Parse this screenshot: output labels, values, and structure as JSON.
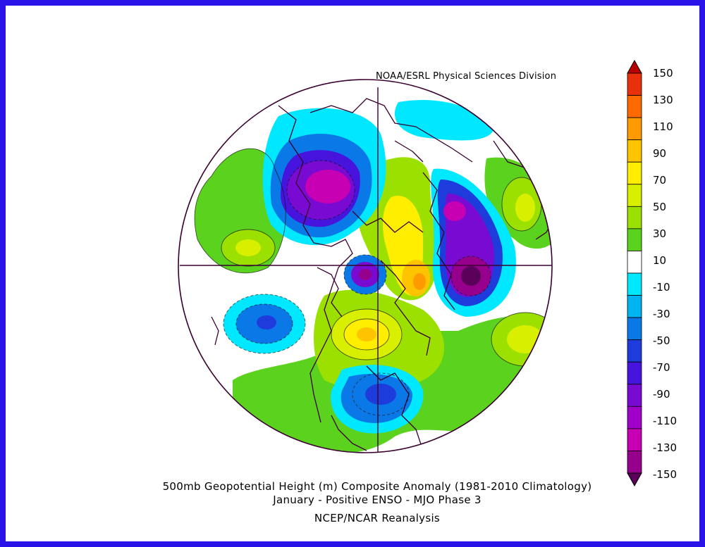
{
  "header": {
    "credit": "NOAA/ESRL Physical Sciences Division"
  },
  "colorbar": {
    "labels": [
      "150",
      "130",
      "110",
      "90",
      "70",
      "50",
      "30",
      "10",
      "-10",
      "-30",
      "-50",
      "-70",
      "-90",
      "-110",
      "-130",
      "-150"
    ],
    "colors": [
      "#b80000",
      "#e8300a",
      "#ff6a00",
      "#ff9a00",
      "#ffc400",
      "#ffee00",
      "#d8f000",
      "#9ce000",
      "#5ad21e",
      "#ffffff",
      "#00e8ff",
      "#00b4f0",
      "#0a78e6",
      "#1e3cdc",
      "#4614dc",
      "#780ad2",
      "#a000c8",
      "#c800b4",
      "#96008c",
      "#5a005a"
    ]
  },
  "caption": {
    "line1": "500mb Geopotential Height (m) Composite Anomaly (1981-2010 Climatology)",
    "line2": "January - Positive ENSO - MJO Phase 3",
    "line3": "NCEP/NCAR Reanalysis"
  }
}
